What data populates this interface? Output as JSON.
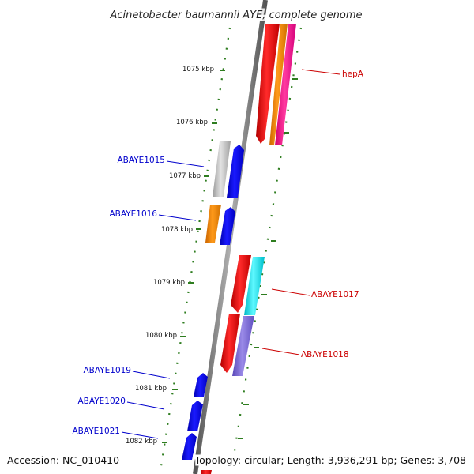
{
  "title": "Acinetobacter baumannii AYE, complete genome",
  "footer": {
    "accession": "Accession: NC_010410",
    "summary": "Topology: circular; Length: 3,936,291 bp; Genes: 3,708"
  },
  "ticks": [
    {
      "label": "1075 kbp"
    },
    {
      "label": "1076 kbp"
    },
    {
      "label": "1077 kbp"
    },
    {
      "label": "1078 kbp"
    },
    {
      "label": "1079 kbp"
    },
    {
      "label": "1080 kbp"
    },
    {
      "label": "1081 kbp"
    },
    {
      "label": "1082 kbp"
    }
  ],
  "gene_labels": [
    {
      "text": "hepA",
      "color": "#cc0000"
    },
    {
      "text": "ABAYE1015",
      "color": "#0000cc"
    },
    {
      "text": "ABAYE1016",
      "color": "#0000cc"
    },
    {
      "text": "ABAYE1017",
      "color": "#cc0000"
    },
    {
      "text": "ABAYE1018",
      "color": "#cc0000"
    },
    {
      "text": "ABAYE1019",
      "color": "#0000cc"
    },
    {
      "text": "ABAYE1020",
      "color": "#0000cc"
    },
    {
      "text": "ABAYE1021",
      "color": "#0000cc"
    }
  ],
  "colors": {
    "backbone": "#7a7a7a",
    "tick_dots": "#2e7d1f",
    "forward_gene": "#ff0000",
    "reverse_gene": "#0000ff",
    "cds_orange": "#ff8c00",
    "cds_pink": "#ff1493",
    "cds_gray": "#b8b8b8",
    "cds_cyan": "#00e5ee",
    "cds_purple": "#7b68d6"
  }
}
